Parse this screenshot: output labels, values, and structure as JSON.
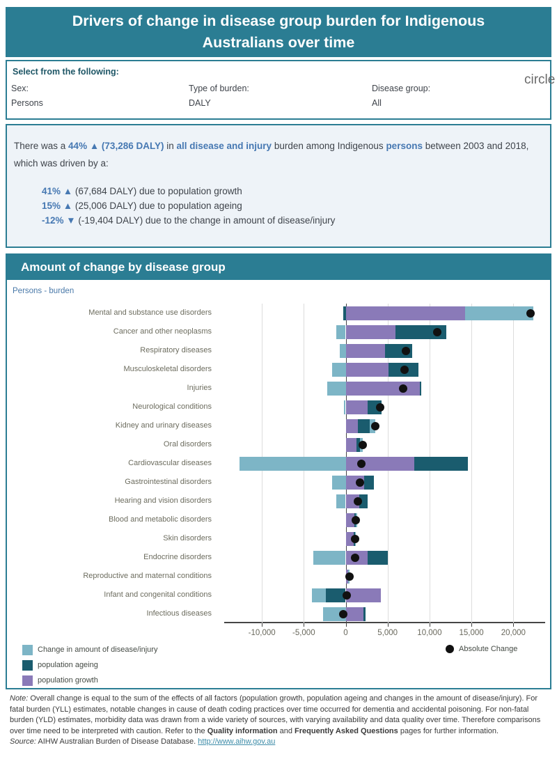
{
  "header": {
    "title": "Drivers of change in disease group burden for Indigenous Australians over time"
  },
  "filters": {
    "heading": "Select from the following:",
    "artifact_text": "circle",
    "fields": [
      {
        "label": "Sex:",
        "value": "Persons"
      },
      {
        "label": "Type of burden:",
        "value": "DALY"
      },
      {
        "label": "Disease group:",
        "value": "All"
      }
    ]
  },
  "summary": {
    "intro_segments": [
      {
        "text": "There was a ",
        "b": false
      },
      {
        "text": "44% ▲ (73,286 DALY)",
        "b": true
      },
      {
        "text": " in ",
        "b": false
      },
      {
        "text": "all disease and injury",
        "b": true
      },
      {
        "text": " burden among Indigenous ",
        "b": false
      },
      {
        "text": "persons",
        "b": true
      },
      {
        "text": " between 2003 and 2018, which was driven by a:",
        "b": false
      }
    ],
    "drivers": [
      {
        "highlight": "41% ▲",
        "rest": " (67,684 DALY) due to population growth"
      },
      {
        "highlight": "15% ▲",
        "rest": " (25,006 DALY) due to population ageing"
      },
      {
        "highlight": "-12% ▼",
        "rest": " (-19,404 DALY) due to the change in amount of disease/injury"
      }
    ]
  },
  "chart_section": {
    "title": "Amount of change by disease group",
    "subtitle": "Persons - burden"
  },
  "chart_data": {
    "type": "bar",
    "variant": "horizontal-stacked-with-dot",
    "unit": "DALY",
    "x_axis": {
      "range": [
        -14500,
        23800
      ],
      "ticks": [
        -10000,
        -5000,
        0,
        5000,
        10000,
        15000,
        20000
      ],
      "tick_labels": [
        "-10,000",
        "-5,000",
        "0",
        "5,000",
        "10,000",
        "15,000",
        "20,000"
      ],
      "grid": true
    },
    "stack_order_from_zero": [
      "growth",
      "ageing",
      "amount"
    ],
    "rows": [
      {
        "label": "Mental and substance use disorders",
        "growth": 14250,
        "ageing": -330,
        "amount": 8150,
        "absolute": 22050
      },
      {
        "label": "Cancer and other neoplasms",
        "growth": 5950,
        "ageing": 6100,
        "amount": -1150,
        "absolute": 10900
      },
      {
        "label": "Respiratory diseases",
        "growth": 4650,
        "ageing": 3300,
        "amount": -750,
        "absolute": 7200
      },
      {
        "label": "Musculoskeletal disorders",
        "growth": 5100,
        "ageing": 3550,
        "amount": -1600,
        "absolute": 7050
      },
      {
        "label": "Injuries",
        "growth": 8850,
        "ageing": 200,
        "amount": -2200,
        "absolute": 6850
      },
      {
        "label": "Neurological conditions",
        "growth": 2650,
        "ageing": 1650,
        "amount": -200,
        "absolute": 4100
      },
      {
        "label": "Kidney and urinary diseases",
        "growth": 1450,
        "ageing": 1400,
        "amount": 700,
        "absolute": 3550
      },
      {
        "label": "Oral disorders",
        "growth": 1250,
        "ageing": 420,
        "amount": 350,
        "absolute": 2000
      },
      {
        "label": "Cardiovascular diseases",
        "growth": 8150,
        "ageing": 6400,
        "amount": -12650,
        "absolute": 1900
      },
      {
        "label": "Gastrointestinal disorders",
        "growth": 2200,
        "ageing": 1150,
        "amount": -1650,
        "absolute": 1700
      },
      {
        "label": "Hearing and vision disorders",
        "growth": 1650,
        "ageing": 950,
        "amount": -1150,
        "absolute": 1450
      },
      {
        "label": "Blood and metabolic disorders",
        "growth": 1050,
        "ageing": 150,
        "amount": 50,
        "absolute": 1200
      },
      {
        "label": "Skin disorders",
        "growth": 980,
        "ageing": 100,
        "amount": 30,
        "absolute": 1100
      },
      {
        "label": "Endocrine disorders",
        "growth": 2650,
        "ageing": 2350,
        "amount": -3900,
        "absolute": 1100
      },
      {
        "label": "Reproductive and maternal conditions",
        "growth": 260,
        "ageing": 40,
        "amount": 150,
        "absolute": 450
      },
      {
        "label": "Infant and congenital conditions",
        "growth": 4200,
        "ageing": -2350,
        "amount": -1700,
        "absolute": 150
      },
      {
        "label": "Infectious diseases",
        "growth": 2150,
        "ageing": 250,
        "amount": -2700,
        "absolute": -300
      }
    ]
  },
  "legend": {
    "items": [
      {
        "key": "amount",
        "label": "Change in amount of disease/injury"
      },
      {
        "key": "ageing",
        "label": "population ageing"
      },
      {
        "key": "growth",
        "label": "population growth"
      }
    ],
    "absolute_label": "Absolute Change"
  },
  "notes": {
    "note_segments": [
      {
        "text": "Note:",
        "style": "i"
      },
      {
        "text": " Overall change is equal to the sum of the effects of all factors (population growth, population ageing and changes in the amount of disease/injury). For fatal burden (YLL) estimates, notable changes in cause of death coding practices over time occurred for dementia and accidental poisoning. For non-fatal burden (YLD) estimates, morbidity data was drawn from a wide variety of sources, with varying availability and data quality over time. Therefore comparisons over time need to be interpreted with caution. Refer to the ",
        "style": ""
      },
      {
        "text": "Quality information",
        "style": "b"
      },
      {
        "text": " and ",
        "style": ""
      },
      {
        "text": "Frequently Asked Questions",
        "style": "b"
      },
      {
        "text": " pages for further information.",
        "style": ""
      }
    ],
    "source_segments": [
      {
        "text": "Source:",
        "style": "i"
      },
      {
        "text": " AIHW Australian Burden of Disease Database. ",
        "style": ""
      },
      {
        "text": "http://www.aihw.gov.au",
        "style": "link"
      }
    ]
  },
  "colors": {
    "accent_teal": "#2b7d93",
    "bar_amount": "#7db5c6",
    "bar_ageing": "#1a5c6e",
    "bar_growth": "#8a7ab8",
    "dot": "#111111",
    "highlight_blue": "#4678b2",
    "summary_bg": "#eef3f8",
    "link": "#3d8ca8"
  }
}
